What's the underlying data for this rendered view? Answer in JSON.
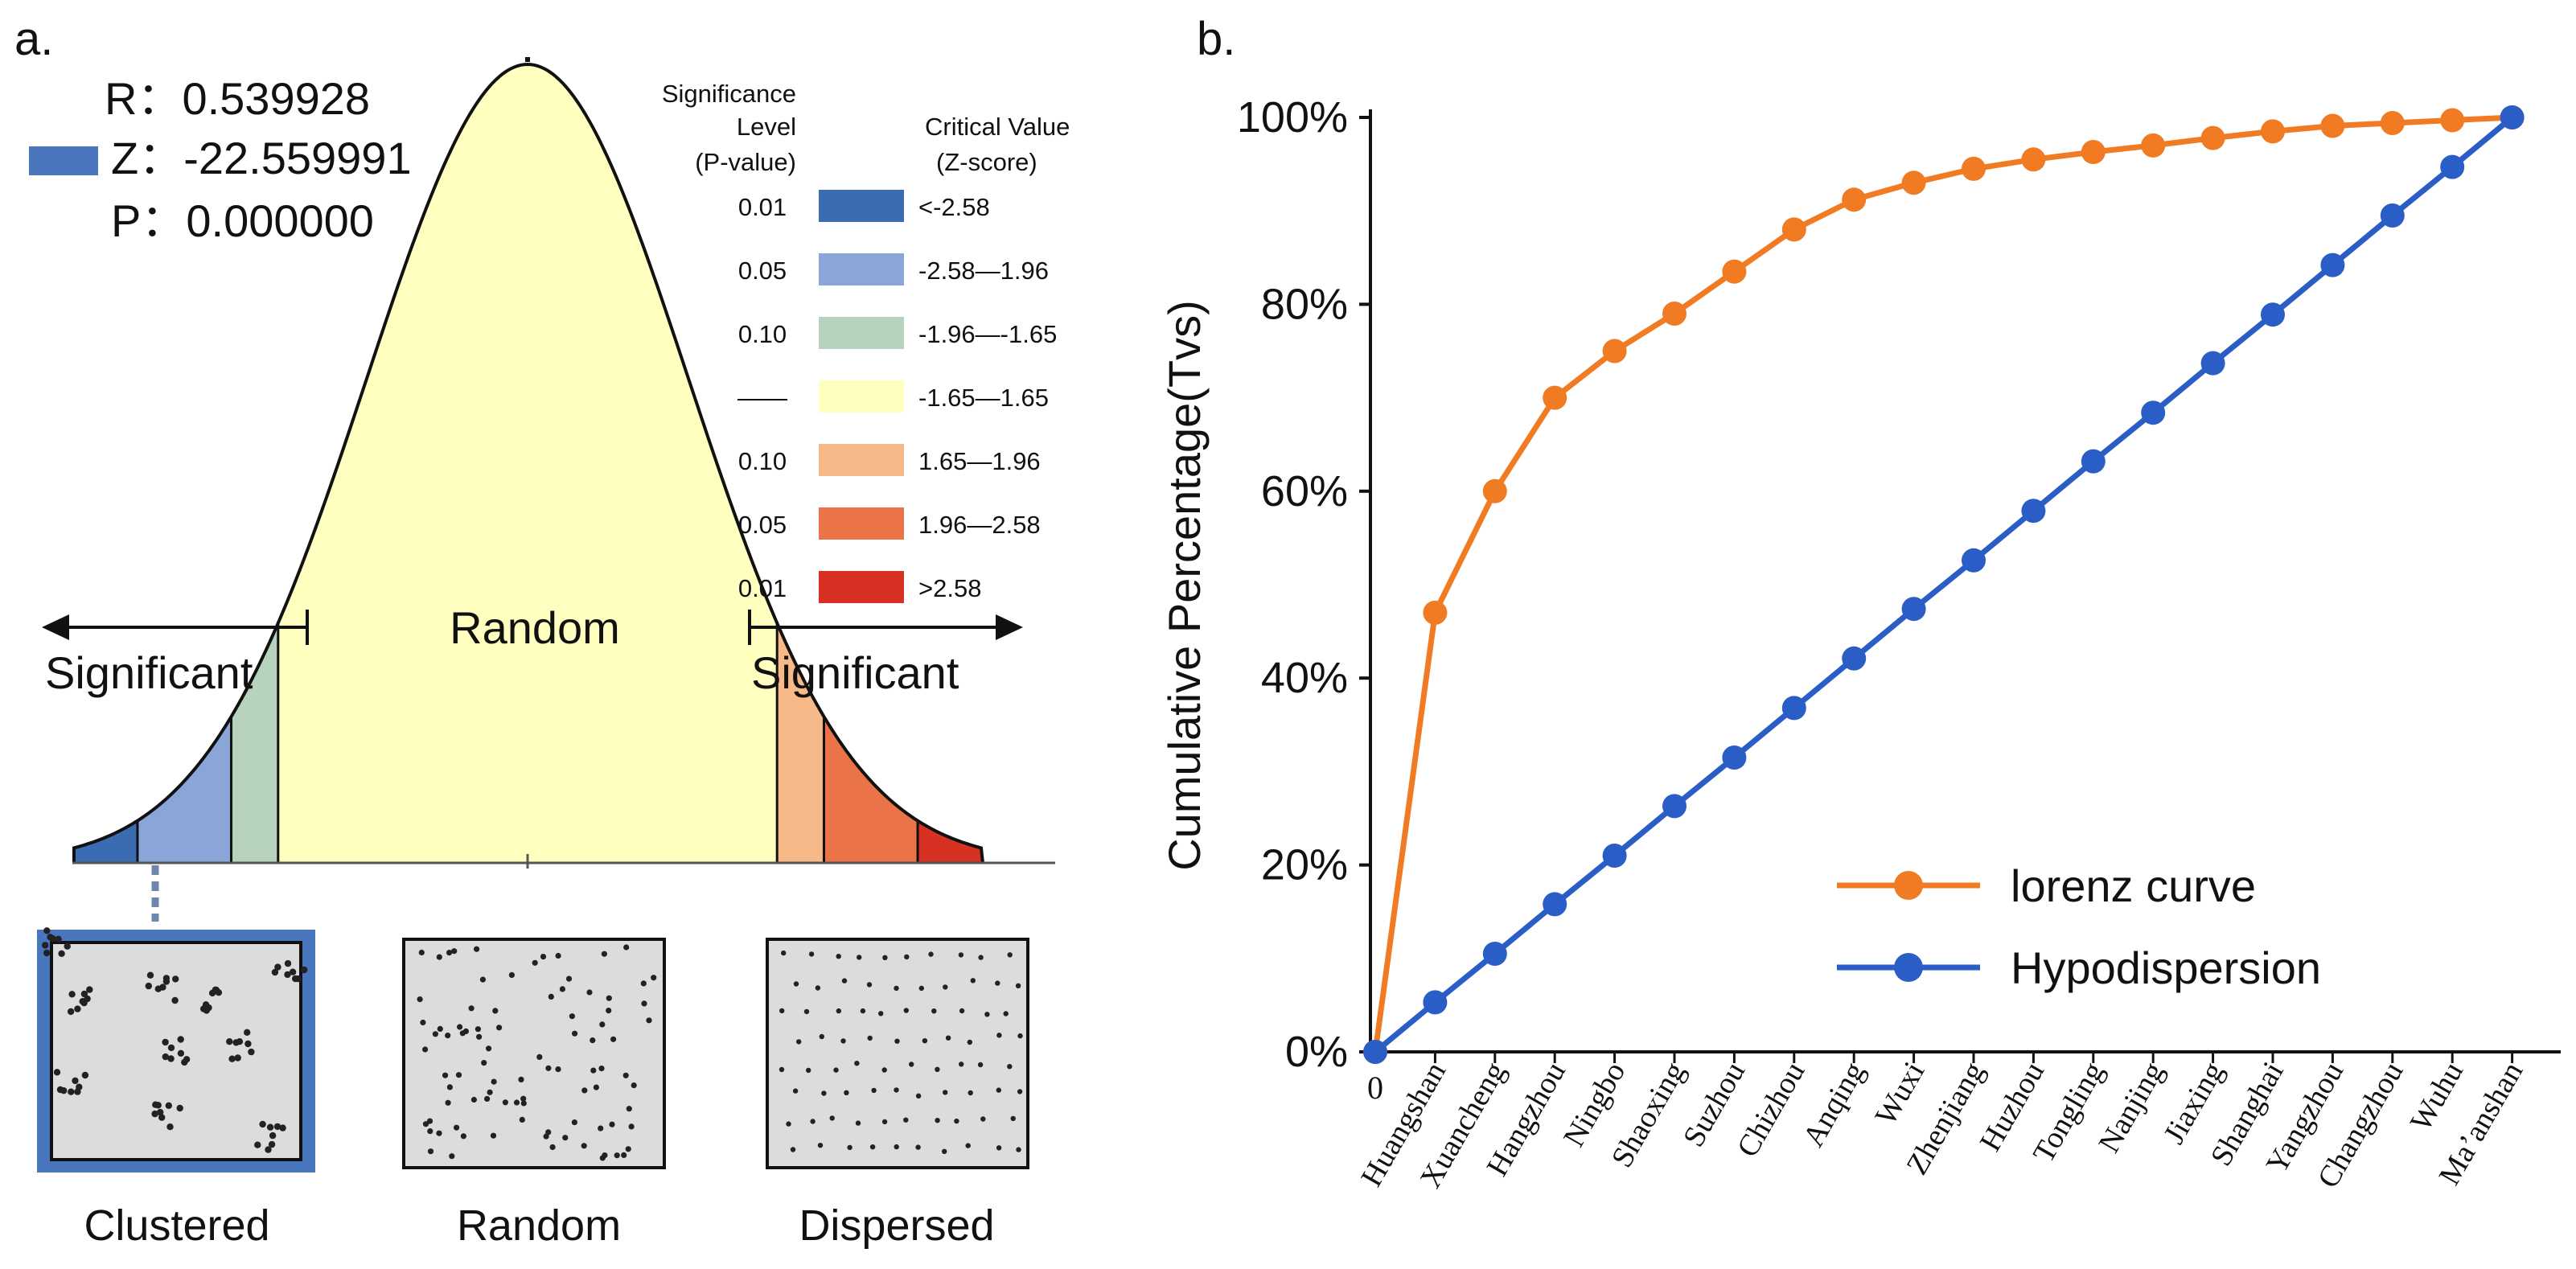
{
  "panel_a": {
    "label": "a.",
    "stats": {
      "r_label": "R",
      "r_value": "0.539928",
      "z_label": "Z",
      "z_value": "-22.559991",
      "p_label": "P",
      "p_value": "0.000000",
      "colon": "："
    },
    "legend": {
      "sig_header": [
        "Significance",
        "Level",
        "(P-value)"
      ],
      "crit_header": [
        "Critical Value",
        "(Z-score)"
      ],
      "rows": [
        {
          "p": "0.01",
          "z": "<-2.58",
          "color": "#3b6cb2"
        },
        {
          "p": "0.05",
          "z": "-2.58—1.96",
          "color": "#8aa5d8"
        },
        {
          "p": "0.10",
          "z": "-1.96—-1.65",
          "color": "#b7d3bd"
        },
        {
          "p": "——",
          "z": "-1.65—1.65",
          "color": "#ffffbf"
        },
        {
          "p": "0.10",
          "z": "1.65—1.96",
          "color": "#f7b987"
        },
        {
          "p": "0.05",
          "z": "1.96—2.58",
          "color": "#ea7447"
        },
        {
          "p": "0.01",
          "z": ">2.58",
          "color": "#d63122"
        }
      ]
    },
    "curve": {
      "random_label": "Random",
      "sig_left_label": "Significant",
      "sig_right_label": "Significant",
      "clustered_marker_color": "#4a76bd"
    },
    "patterns": [
      "Clustered",
      "Random",
      "Dispersed"
    ]
  },
  "panel_b": {
    "label": "b.",
    "chart_data": {
      "type": "line",
      "title": "",
      "xlabel": "",
      "ylabel": "Cumulative Percentage(Tvs)",
      "ylim": [
        0,
        100
      ],
      "yticks": [
        "0%",
        "20%",
        "40%",
        "60%",
        "80%",
        "100%"
      ],
      "categories": [
        "0",
        "Huangshan",
        "Xuancheng",
        "Hangzhou",
        "Ningbo",
        "Shaoxing",
        "Suzhou",
        "Chizhou",
        "Anqing",
        "Wuxi",
        "Zhenjiang",
        "Huzhou",
        "Tongling",
        "Nanjing",
        "Jiaxing",
        "Shanghai",
        "Yangzhou",
        "Changzhou",
        "Wuhu",
        "Ma’anshan"
      ],
      "legend_position": "bottom-right",
      "series": [
        {
          "name": "lorenz curve",
          "color": "#f07b22",
          "values": [
            0,
            47,
            60,
            70,
            75,
            79,
            83.5,
            88,
            91.2,
            93,
            94.5,
            95.5,
            96.3,
            97,
            97.8,
            98.5,
            99.1,
            99.4,
            99.7,
            100
          ]
        },
        {
          "name": "Hypodispersion",
          "color": "#2a5ec6",
          "values": [
            0,
            5.3,
            10.5,
            15.8,
            21,
            26.3,
            31.5,
            36.8,
            42.1,
            47.4,
            52.6,
            57.9,
            63.2,
            68.4,
            73.7,
            78.9,
            84.2,
            89.5,
            94.7,
            100
          ]
        }
      ]
    }
  }
}
